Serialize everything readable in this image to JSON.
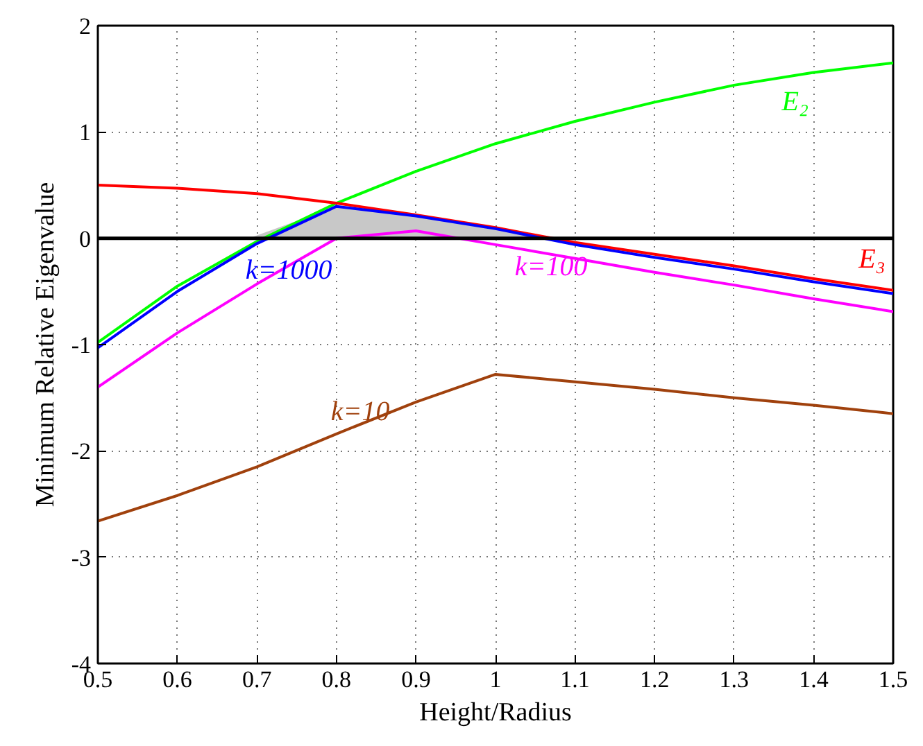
{
  "chart_data": {
    "type": "line",
    "xlabel": "Height/Radius",
    "ylabel": "Minimum Relative Eigenvalue",
    "x": [
      0.5,
      0.6,
      0.7,
      0.8,
      0.9,
      1.0,
      1.1,
      1.2,
      1.3,
      1.4,
      1.5
    ],
    "series": [
      {
        "type": "area",
        "color": "#c8c8c8",
        "x": [
          0.69,
          0.8,
          0.9,
          1.0,
          1.07
        ],
        "values": [
          0,
          0.3,
          0.21,
          0.09,
          0
        ]
      },
      {
        "name": "E₂",
        "color": "#00ff00",
        "values": [
          -0.98,
          -0.45,
          -0.03,
          0.33,
          0.63,
          0.89,
          1.1,
          1.28,
          1.44,
          1.56,
          1.65
        ]
      },
      {
        "name": "E₃",
        "color": "#ff0000",
        "values": [
          0.5,
          0.47,
          0.42,
          0.33,
          0.22,
          0.1,
          -0.04,
          -0.15,
          -0.26,
          -0.38,
          -0.49
        ]
      },
      {
        "name": "k=1000",
        "color": "#0000ff",
        "values": [
          -1.03,
          -0.5,
          -0.05,
          0.3,
          0.21,
          0.09,
          -0.06,
          -0.18,
          -0.29,
          -0.41,
          -0.52
        ]
      },
      {
        "name": "k=100",
        "color": "#ff00ff",
        "values": [
          -1.4,
          -0.89,
          -0.43,
          0.0,
          0.07,
          -0.06,
          -0.19,
          -0.32,
          -0.44,
          -0.57,
          -0.69
        ]
      },
      {
        "name": "k=10",
        "color": "#a0410d",
        "values": [
          -2.66,
          -2.42,
          -2.15,
          -1.84,
          -1.54,
          -1.28,
          -1.35,
          -1.42,
          -1.5,
          -1.57,
          -1.65
        ]
      }
    ],
    "ref_lines": [
      {
        "axis": "y",
        "value": 0,
        "color": "#000000"
      }
    ],
    "xlim": [
      0.5,
      1.5
    ],
    "xticks": [
      0.5,
      0.6,
      0.7,
      0.8,
      0.9,
      1,
      1.1,
      1.2,
      1.3,
      1.4,
      1.5
    ],
    "ylim": [
      -4,
      2
    ],
    "yticks": [
      -4,
      -3,
      -2,
      -1,
      0,
      1,
      2
    ],
    "grid": true,
    "line_style": "solid",
    "marker": "none"
  }
}
